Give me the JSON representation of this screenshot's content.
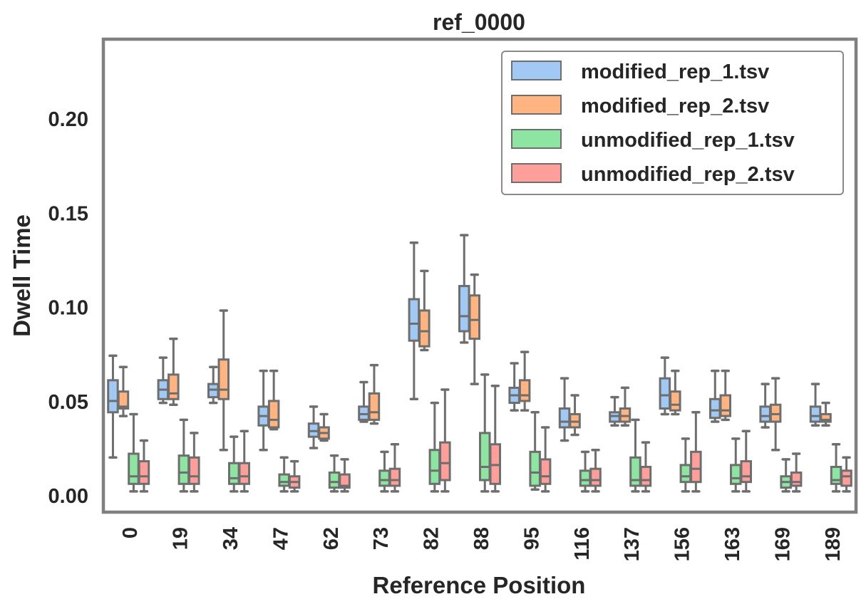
{
  "chart_data": {
    "type": "box",
    "title": "ref_0000",
    "xlabel": "Reference Position",
    "ylabel": "Dwell Time",
    "ylim": [
      -0.009,
      0.242
    ],
    "yticks": [
      "0.00",
      "0.05",
      "0.10",
      "0.15",
      "0.20"
    ],
    "ytick_values": [
      0.0,
      0.05,
      0.1,
      0.15,
      0.2
    ],
    "categories": [
      "0",
      "19",
      "34",
      "47",
      "62",
      "73",
      "82",
      "88",
      "95",
      "116",
      "137",
      "156",
      "163",
      "169",
      "189"
    ],
    "grid": false,
    "legend_position": "top-right",
    "series": [
      {
        "name": "modified_rep_1.tsv",
        "color": "#a1c9f4",
        "boxes": [
          [
            0.02,
            0.044,
            0.05,
            0.061,
            0.074
          ],
          [
            0.049,
            0.051,
            0.056,
            0.061,
            0.073
          ],
          [
            0.049,
            0.052,
            0.056,
            0.059,
            0.068
          ],
          [
            0.024,
            0.037,
            0.042,
            0.047,
            0.066
          ],
          [
            0.025,
            0.031,
            0.034,
            0.038,
            0.047
          ],
          [
            0.039,
            0.04,
            0.043,
            0.047,
            0.06
          ],
          [
            0.051,
            0.082,
            0.091,
            0.104,
            0.134
          ],
          [
            0.081,
            0.087,
            0.095,
            0.111,
            0.138
          ],
          [
            0.045,
            0.049,
            0.053,
            0.057,
            0.07
          ],
          [
            0.029,
            0.036,
            0.039,
            0.046,
            0.062
          ],
          [
            0.037,
            0.039,
            0.042,
            0.044,
            0.052
          ],
          [
            0.043,
            0.046,
            0.053,
            0.062,
            0.073
          ],
          [
            0.039,
            0.041,
            0.045,
            0.051,
            0.066
          ],
          [
            0.036,
            0.039,
            0.042,
            0.047,
            0.059
          ],
          [
            0.037,
            0.039,
            0.042,
            0.047,
            0.059
          ]
        ]
      },
      {
        "name": "modified_rep_2.tsv",
        "color": "#ffb482",
        "boxes": [
          [
            0.042,
            0.046,
            0.047,
            0.055,
            0.068
          ],
          [
            0.048,
            0.051,
            0.054,
            0.064,
            0.083
          ],
          [
            0.024,
            0.051,
            0.056,
            0.072,
            0.098
          ],
          [
            0.035,
            0.036,
            0.04,
            0.05,
            0.066
          ],
          [
            0.029,
            0.03,
            0.033,
            0.036,
            0.043
          ],
          [
            0.038,
            0.04,
            0.044,
            0.054,
            0.069
          ],
          [
            0.077,
            0.079,
            0.087,
            0.098,
            0.119
          ],
          [
            0.059,
            0.083,
            0.093,
            0.106,
            0.117
          ],
          [
            0.045,
            0.05,
            0.053,
            0.061,
            0.076
          ],
          [
            0.032,
            0.036,
            0.039,
            0.043,
            0.053
          ],
          [
            0.037,
            0.039,
            0.042,
            0.046,
            0.057
          ],
          [
            0.043,
            0.045,
            0.048,
            0.055,
            0.066
          ],
          [
            0.04,
            0.042,
            0.045,
            0.053,
            0.066
          ],
          [
            0.024,
            0.039,
            0.043,
            0.048,
            0.062
          ],
          [
            0.037,
            0.039,
            0.04,
            0.043,
            0.049
          ]
        ]
      },
      {
        "name": "unmodified_rep_1.tsv",
        "color": "#8de5a1",
        "boxes": [
          [
            0.002,
            0.006,
            0.01,
            0.022,
            0.043
          ],
          [
            0.002,
            0.006,
            0.012,
            0.021,
            0.04
          ],
          [
            0.002,
            0.006,
            0.009,
            0.017,
            0.031
          ],
          [
            0.002,
            0.005,
            0.007,
            0.011,
            0.02
          ],
          [
            0.002,
            0.004,
            0.007,
            0.012,
            0.021
          ],
          [
            0.002,
            0.005,
            0.008,
            0.013,
            0.023
          ],
          [
            0.002,
            0.006,
            0.013,
            0.024,
            0.049
          ],
          [
            0.002,
            0.008,
            0.015,
            0.033,
            0.064
          ],
          [
            0.003,
            0.005,
            0.012,
            0.023,
            0.044
          ],
          [
            0.002,
            0.005,
            0.008,
            0.013,
            0.023
          ],
          [
            0.002,
            0.005,
            0.008,
            0.02,
            0.04
          ],
          [
            0.002,
            0.007,
            0.01,
            0.016,
            0.03
          ],
          [
            0.002,
            0.006,
            0.009,
            0.016,
            0.03
          ],
          [
            0.002,
            0.004,
            0.007,
            0.01,
            0.019
          ],
          [
            0.002,
            0.006,
            0.008,
            0.015,
            0.027
          ]
        ]
      },
      {
        "name": "unmodified_rep_2.tsv",
        "color": "#ff9f9b",
        "boxes": [
          [
            0.002,
            0.006,
            0.01,
            0.018,
            0.029
          ],
          [
            0.002,
            0.006,
            0.01,
            0.02,
            0.033
          ],
          [
            0.002,
            0.006,
            0.01,
            0.017,
            0.034
          ],
          [
            0.002,
            0.004,
            0.007,
            0.01,
            0.018
          ],
          [
            0.002,
            0.004,
            0.005,
            0.011,
            0.019
          ],
          [
            0.002,
            0.005,
            0.008,
            0.014,
            0.027
          ],
          [
            0.002,
            0.008,
            0.017,
            0.028,
            0.056
          ],
          [
            0.002,
            0.006,
            0.016,
            0.027,
            0.058
          ],
          [
            0.002,
            0.006,
            0.01,
            0.019,
            0.036
          ],
          [
            0.002,
            0.005,
            0.008,
            0.014,
            0.024
          ],
          [
            0.002,
            0.005,
            0.008,
            0.015,
            0.028
          ],
          [
            0.002,
            0.007,
            0.014,
            0.023,
            0.044
          ],
          [
            0.002,
            0.007,
            0.01,
            0.018,
            0.034
          ],
          [
            0.002,
            0.005,
            0.007,
            0.012,
            0.022
          ],
          [
            0.002,
            0.005,
            0.01,
            0.013,
            0.02
          ]
        ]
      }
    ]
  }
}
